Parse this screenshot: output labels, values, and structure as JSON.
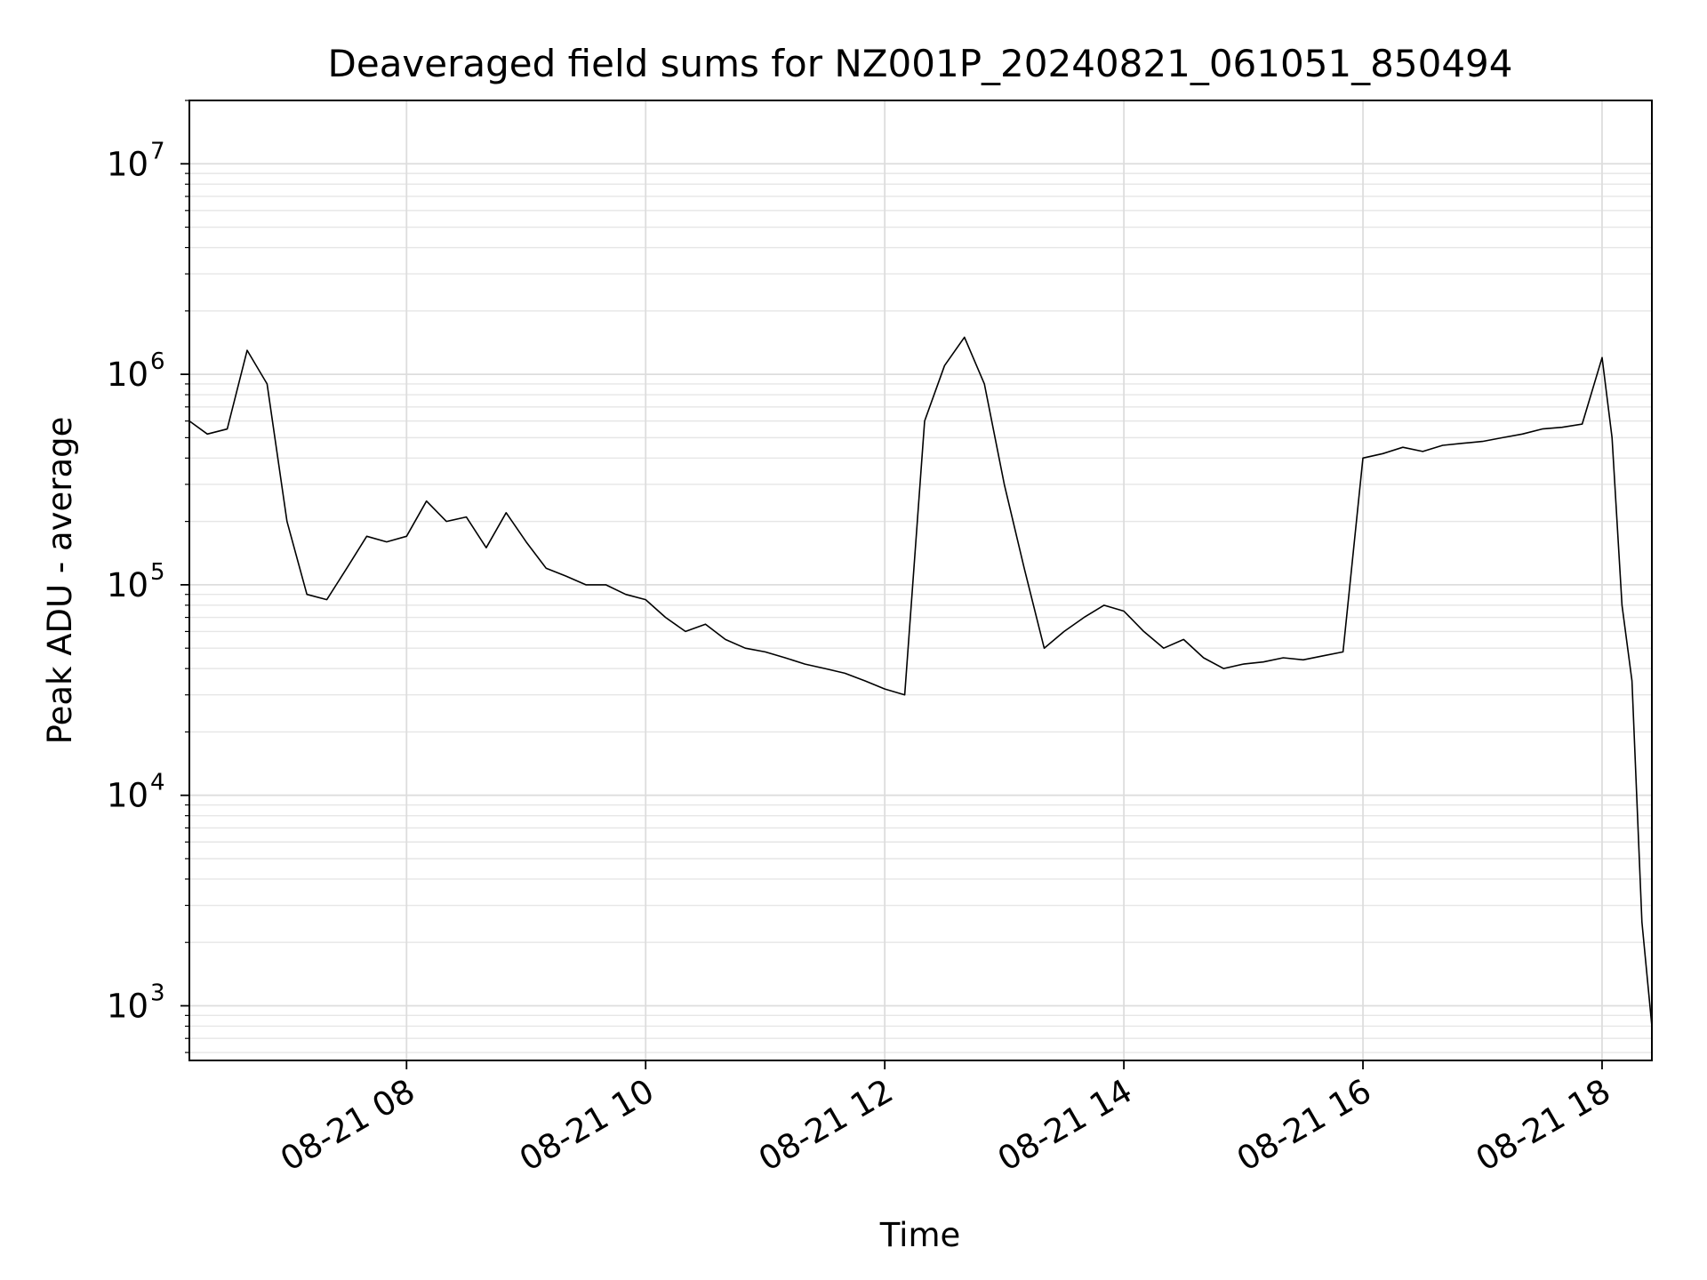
{
  "chart_data": {
    "type": "line",
    "title": "Deaveraged field sums for NZ001P_20240821_061051_850494",
    "xlabel": "Time",
    "ylabel": "Peak ADU - average",
    "yscale": "log",
    "ylim": [
      550,
      20000000
    ],
    "xlim": [
      "2024-08-21 06:11",
      "2024-08-21 18:25"
    ],
    "grid": "on (major and minor, light gray)",
    "line_color": "#000000",
    "x_ticks": [
      "08-21 08",
      "08-21 10",
      "08-21 12",
      "08-21 14",
      "08-21 16",
      "08-21 18"
    ],
    "y_ticks": [
      {
        "base": "10",
        "exp": "3"
      },
      {
        "base": "10",
        "exp": "4"
      },
      {
        "base": "10",
        "exp": "5"
      },
      {
        "base": "10",
        "exp": "6"
      },
      {
        "base": "10",
        "exp": "7"
      }
    ],
    "series": [
      {
        "x": [
          "06:11",
          "06:20",
          "06:30",
          "06:40",
          "06:50",
          "07:00",
          "07:10",
          "07:20",
          "07:30",
          "07:40",
          "07:50",
          "08:00",
          "08:10",
          "08:20",
          "08:30",
          "08:40",
          "08:50",
          "09:00",
          "09:10",
          "09:20",
          "09:30",
          "09:40",
          "09:50",
          "10:00",
          "10:10",
          "10:20",
          "10:30",
          "10:40",
          "10:50",
          "11:00",
          "11:10",
          "11:20",
          "11:30",
          "11:40",
          "11:50",
          "12:00",
          "12:10",
          "12:20",
          "12:30",
          "12:40",
          "12:50",
          "13:00",
          "13:10",
          "13:20",
          "13:30",
          "13:40",
          "13:50",
          "14:00",
          "14:10",
          "14:20",
          "14:30",
          "14:40",
          "14:50",
          "15:00",
          "15:10",
          "15:20",
          "15:30",
          "15:40",
          "15:50",
          "16:00",
          "16:10",
          "16:20",
          "16:30",
          "16:40",
          "16:50",
          "17:00",
          "17:10",
          "17:20",
          "17:30",
          "17:40",
          "17:50",
          "18:00",
          "18:05",
          "18:10",
          "18:15",
          "18:20",
          "18:25"
        ],
        "values": [
          600000,
          520000,
          550000,
          1300000,
          900000,
          200000,
          90000,
          85000,
          120000,
          170000,
          160000,
          170000,
          250000,
          200000,
          210000,
          150000,
          220000,
          160000,
          120000,
          110000,
          100000,
          100000,
          90000,
          85000,
          70000,
          60000,
          65000,
          55000,
          50000,
          48000,
          45000,
          42000,
          40000,
          38000,
          35000,
          32000,
          30000,
          600000,
          1100000,
          1500000,
          900000,
          300000,
          120000,
          50000,
          60000,
          70000,
          80000,
          75000,
          60000,
          50000,
          55000,
          45000,
          40000,
          42000,
          43000,
          45000,
          44000,
          46000,
          48000,
          400000,
          420000,
          450000,
          430000,
          460000,
          470000,
          480000,
          500000,
          520000,
          550000,
          560000,
          580000,
          1200000,
          500000,
          80000,
          35000,
          2500,
          800
        ]
      }
    ]
  }
}
